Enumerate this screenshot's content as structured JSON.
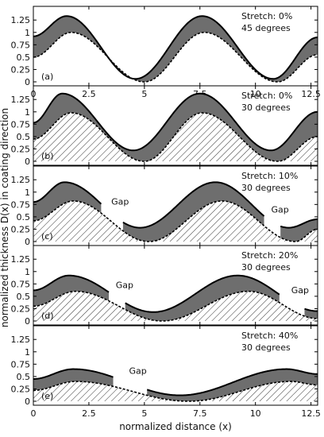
{
  "figure": {
    "xlabel": "normalized distance (x)",
    "ylabel": "normalized thickness D(x) in coating direction"
  },
  "chart_data": [
    {
      "type": "area",
      "panel_label": "(a)",
      "annotation_lines": [
        "Stretch: 0%",
        "45 degrees"
      ],
      "gap_label": "",
      "hatched": false,
      "xlim": [
        0,
        12.8
      ],
      "ylim": [
        0,
        1.35
      ],
      "yticks": [
        "0",
        "0.25",
        "0.5",
        "0.75",
        "1",
        "1.25"
      ],
      "xticks": [
        "0",
        "2.5",
        "5",
        "7.5",
        "10",
        "12.5"
      ],
      "series": [
        {
          "role": "upper",
          "x": [
            0,
            1.5,
            4.6,
            7.6,
            10.8,
            12.8
          ],
          "y": [
            0.92,
            1.33,
            0.06,
            1.33,
            0.06,
            0.9
          ]
        },
        {
          "role": "lower",
          "x": [
            0,
            1.7,
            5.0,
            7.7,
            11.0,
            12.8
          ],
          "y": [
            0.5,
            1.0,
            0.0,
            1.0,
            0.0,
            0.55
          ]
        }
      ],
      "gaps": []
    },
    {
      "type": "area",
      "panel_label": "(b)",
      "annotation_lines": [
        "Stretch: 0%",
        "30 degrees"
      ],
      "gap_label": "",
      "hatched": true,
      "xlim": [
        0,
        12.8
      ],
      "ylim": [
        0,
        1.35
      ],
      "yticks": [
        "0",
        "0.25",
        "0.5",
        "0.75",
        "1",
        "1.25"
      ],
      "xticks": [],
      "series": [
        {
          "role": "upper",
          "x": [
            0,
            1.3,
            4.5,
            7.5,
            10.7,
            12.8
          ],
          "y": [
            0.78,
            1.37,
            0.22,
            1.37,
            0.22,
            1.0
          ]
        },
        {
          "role": "lower",
          "x": [
            0,
            1.7,
            5.0,
            7.6,
            11.0,
            12.8
          ],
          "y": [
            0.45,
            0.98,
            0.0,
            0.98,
            0.0,
            0.5
          ]
        }
      ],
      "gaps": []
    },
    {
      "type": "area",
      "panel_label": "(c)",
      "annotation_lines": [
        "Stretch: 10%",
        "30 degrees"
      ],
      "gap_label": "Gap",
      "hatched": true,
      "xlim": [
        0,
        12.8
      ],
      "ylim": [
        0,
        1.35
      ],
      "yticks": [
        "0",
        "0.25",
        "0.5",
        "0.75",
        "1",
        "1.25"
      ],
      "xticks": [],
      "series": [
        {
          "role": "upper",
          "x": [
            0,
            1.4,
            4.8,
            8.2,
            11.5,
            12.8
          ],
          "y": [
            0.8,
            1.2,
            0.28,
            1.2,
            0.28,
            0.45
          ]
        },
        {
          "role": "lower",
          "x": [
            0,
            1.8,
            5.2,
            8.5,
            11.8,
            12.8
          ],
          "y": [
            0.42,
            0.82,
            0.0,
            0.82,
            0.0,
            0.25
          ]
        }
      ],
      "gaps": [
        [
          3.1,
          4.0
        ],
        [
          10.4,
          11.1
        ]
      ]
    },
    {
      "type": "area",
      "panel_label": "(d)",
      "annotation_lines": [
        "Stretch: 20%",
        "30 degrees"
      ],
      "gap_label": "Gap",
      "hatched": true,
      "xlim": [
        0,
        12.8
      ],
      "ylim": [
        0,
        1.35
      ],
      "yticks": [
        "0",
        "0.25",
        "0.5",
        "0.75",
        "1",
        "1.25"
      ],
      "xticks": [],
      "series": [
        {
          "role": "upper",
          "x": [
            0,
            1.6,
            5.4,
            9.2,
            12.8
          ],
          "y": [
            0.62,
            0.92,
            0.18,
            0.92,
            0.2
          ]
        },
        {
          "role": "lower",
          "x": [
            0,
            1.9,
            5.8,
            9.7,
            12.8
          ],
          "y": [
            0.3,
            0.6,
            0.0,
            0.6,
            0.05
          ]
        }
      ],
      "gaps": [
        [
          3.4,
          4.1
        ],
        [
          11.1,
          12.2
        ]
      ]
    },
    {
      "type": "area",
      "panel_label": "(e)",
      "annotation_lines": [
        "Stretch: 40%",
        "30 degrees"
      ],
      "gap_label": "Gap",
      "hatched": true,
      "xlim": [
        0,
        12.8
      ],
      "ylim": [
        0,
        1.35
      ],
      "yticks": [
        "0",
        "0.25",
        "0.5",
        "0.75",
        "1",
        "1.25"
      ],
      "xticks": [
        "0",
        "2.5",
        "5",
        "7.5",
        "10",
        "12.5"
      ],
      "series": [
        {
          "role": "upper",
          "x": [
            0,
            1.8,
            6.6,
            11.4,
            12.8
          ],
          "y": [
            0.45,
            0.65,
            0.12,
            0.65,
            0.55
          ]
        },
        {
          "role": "lower",
          "x": [
            0,
            1.9,
            7.0,
            11.6,
            12.8
          ],
          "y": [
            0.22,
            0.4,
            0.0,
            0.4,
            0.33
          ]
        }
      ],
      "gaps": [
        [
          3.6,
          5.1
        ]
      ]
    }
  ]
}
